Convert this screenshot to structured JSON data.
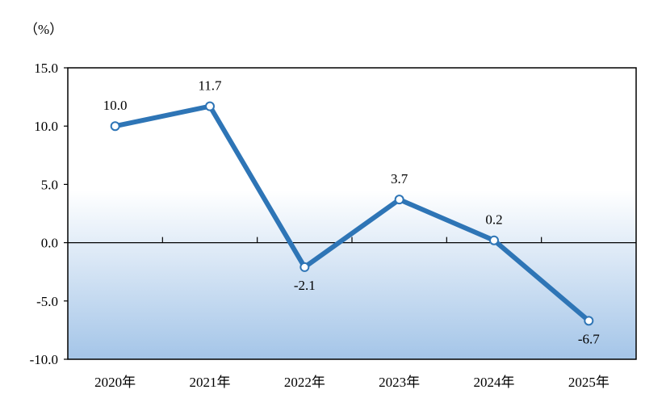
{
  "chart_data": {
    "type": "line",
    "unit": "（%）",
    "categories": [
      "2020年",
      "2021年",
      "2022年",
      "2023年",
      "2024年",
      "2025年"
    ],
    "values": [
      10.0,
      11.7,
      -2.1,
      3.7,
      0.2,
      -6.7
    ],
    "value_labels": [
      "10.0",
      "11.7",
      "-2.1",
      "3.7",
      "0.2",
      "-6.7"
    ],
    "ylim": [
      -10,
      15
    ],
    "yticks": [
      15,
      10,
      5,
      0,
      -5,
      -10
    ],
    "ytick_labels": [
      "15.0",
      "10.0",
      "5.0",
      "0.0",
      "-5.0",
      "-10.0"
    ],
    "grid": false,
    "colors": {
      "line": "#2e75b6",
      "marker_fill": "#ffffff",
      "gradient_top": "#ffffff",
      "gradient_bottom": "#a4c5e8"
    }
  }
}
